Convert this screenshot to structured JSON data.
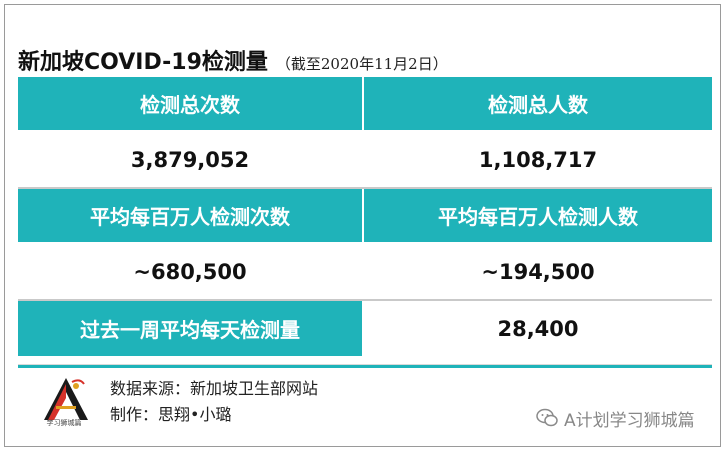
{
  "title": {
    "main": "新加坡COVID-19检测量",
    "note": "（截至2020年11月2日）"
  },
  "table": {
    "rows": [
      {
        "left": "检测总次数",
        "right": "检测总人数",
        "kind": "head"
      },
      {
        "left": "3,879,052",
        "right": "1,108,717",
        "kind": "val"
      },
      {
        "left": "平均每百万人检测次数",
        "right": "平均每百万人检测人数",
        "kind": "head"
      },
      {
        "left": "~680,500",
        "right": "~194,500",
        "kind": "val"
      },
      {
        "left": "过去一周平均每天检测量",
        "right": "28,400",
        "kind": "mixed"
      }
    ]
  },
  "footer": {
    "source": "数据来源：新加坡卫生部网站",
    "author": "制作：思翔•小璐",
    "logo_text": "学习狮城篇",
    "watermark": "A计划学习狮城篇"
  },
  "colors": {
    "accent": "#1fb3b9",
    "text": "#111111",
    "border": "#9a9a9a"
  },
  "icons": [
    "logo-emblem",
    "wechat-icon"
  ]
}
